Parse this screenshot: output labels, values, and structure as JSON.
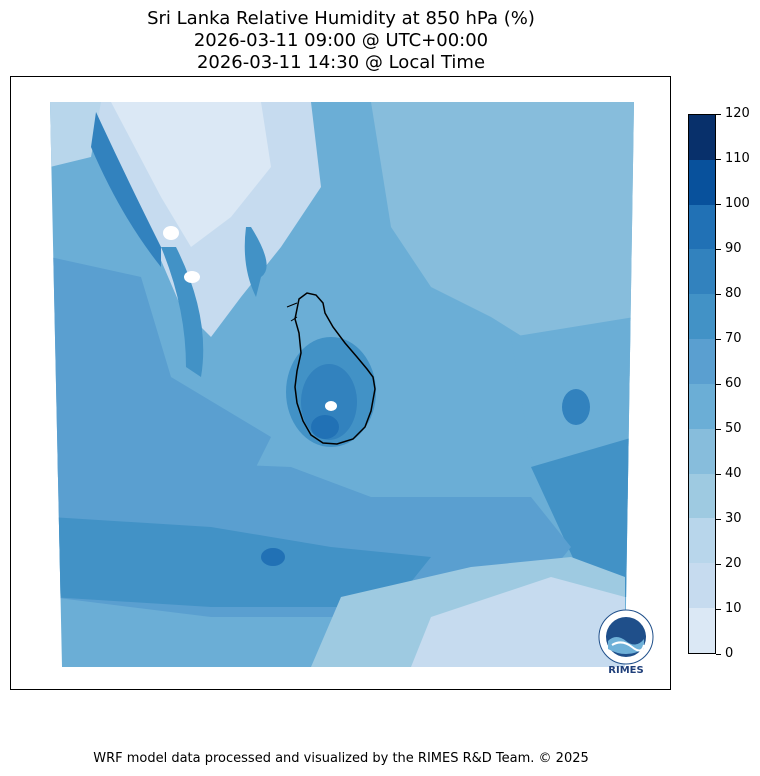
{
  "title": {
    "line1": "Sri Lanka Relative Humidity at 850 hPa (%)",
    "line2": "2026-03-11 09:00 @ UTC+00:00",
    "line3": "2026-03-11 14:30 @ Local Time"
  },
  "colorbar": {
    "ticks": [
      "120",
      "110",
      "100",
      "90",
      "80",
      "70",
      "60",
      "50",
      "40",
      "30",
      "20",
      "10",
      "0"
    ],
    "colors": [
      "#08306b",
      "#08519c",
      "#2171b5",
      "#3282be",
      "#4292c6",
      "#5a9fd0",
      "#6baed6",
      "#87bddc",
      "#9ecae1",
      "#b8d6eb",
      "#c6dbef",
      "#dbe8f5",
      "#eff5fc"
    ]
  },
  "logo": {
    "name": "RIMES",
    "text": "RIMES"
  },
  "footer": "WRF model data processed and visualized by the RIMES R&D Team. © 2025"
}
